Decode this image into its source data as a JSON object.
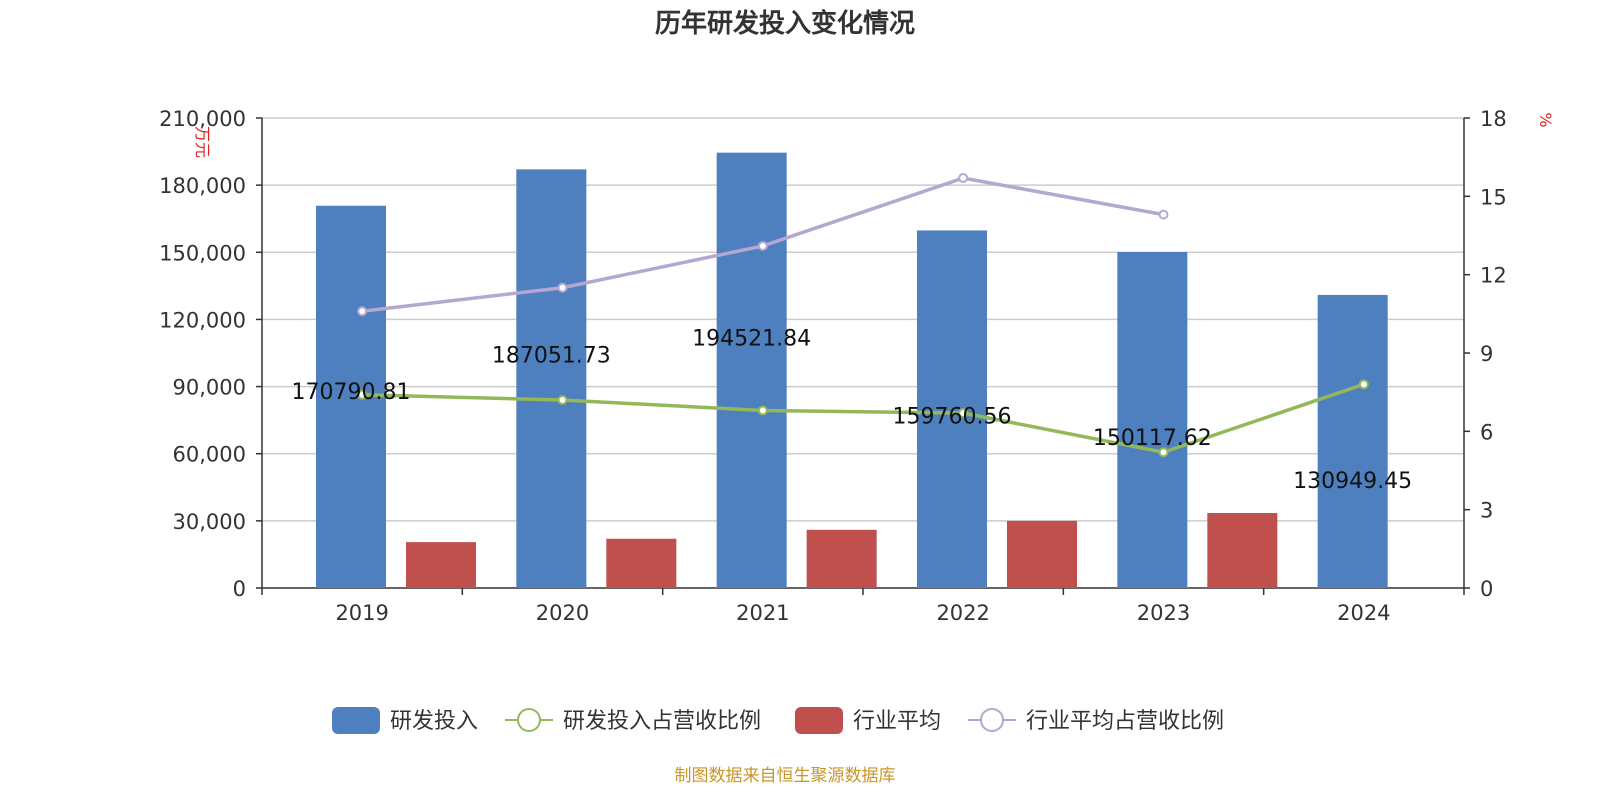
{
  "chart_data": {
    "type": "bar",
    "title": "历年研发投入变化情况",
    "categories": [
      "2019",
      "2020",
      "2021",
      "2022",
      "2023",
      "2024"
    ],
    "left_axis": {
      "unit": "万元",
      "ticks": [
        "0",
        "30,000",
        "60,000",
        "90,000",
        "120,000",
        "150,000",
        "180,000",
        "210,000"
      ],
      "ylim": [
        0,
        210000
      ]
    },
    "right_axis": {
      "unit": "%",
      "ticks": [
        "0",
        "3",
        "6",
        "9",
        "12",
        "15",
        "18"
      ],
      "ylim": [
        0,
        18
      ]
    },
    "series": [
      {
        "name": "研发投入",
        "kind": "bar",
        "axis": "left",
        "color": "#4e7fbf",
        "values": [
          170790.81,
          187051.73,
          194521.84,
          159760.56,
          150117.62,
          130949.45
        ],
        "labels": [
          "170790.81",
          "187051.73",
          "194521.84",
          "159760.56",
          "150117.62",
          "130949.45"
        ]
      },
      {
        "name": "研发投入占营收比例",
        "kind": "line",
        "axis": "right",
        "color": "#93b85a",
        "values": [
          7.4,
          7.2,
          6.8,
          6.7,
          5.2,
          7.8
        ]
      },
      {
        "name": "行业平均",
        "kind": "bar",
        "axis": "left",
        "color": "#c0504d",
        "values": [
          20500,
          22000,
          26000,
          30000,
          33500,
          null
        ]
      },
      {
        "name": "行业平均占营收比例",
        "kind": "line",
        "axis": "right",
        "color": "#b4a7d0",
        "values": [
          10.6,
          11.5,
          13.1,
          15.7,
          14.3,
          null
        ]
      }
    ],
    "legend_position": "bottom",
    "source": "制图数据来自恒生聚源数据库"
  }
}
